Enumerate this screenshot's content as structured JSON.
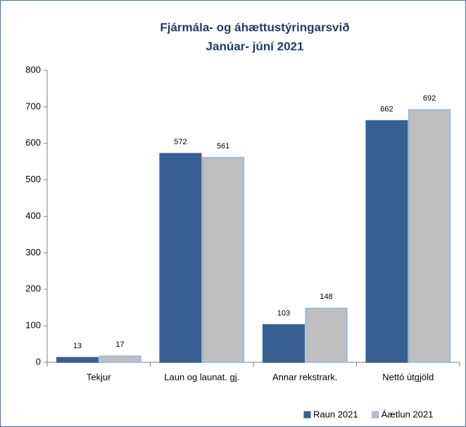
{
  "chart_data": {
    "type": "bar",
    "title": "Fjármála- og áhættustýringarsvið",
    "subtitle": "Janúar- júní 2021",
    "categories": [
      "Tekjur",
      "Laun og launat. gj.",
      "Annar rekstrark.",
      "Nettó útgjöld"
    ],
    "series": [
      {
        "name": "Raun 2021",
        "color": "#375f92",
        "values": [
          13,
          572,
          103,
          662
        ]
      },
      {
        "name": "Áætlun 2021",
        "color": "#bfbfbf",
        "values": [
          17,
          561,
          148,
          692
        ]
      }
    ],
    "ylim": [
      0,
      800
    ],
    "yticks": [
      0,
      100,
      200,
      300,
      400,
      500,
      600,
      700,
      800
    ],
    "grid": false,
    "legend": "bottom-right"
  }
}
